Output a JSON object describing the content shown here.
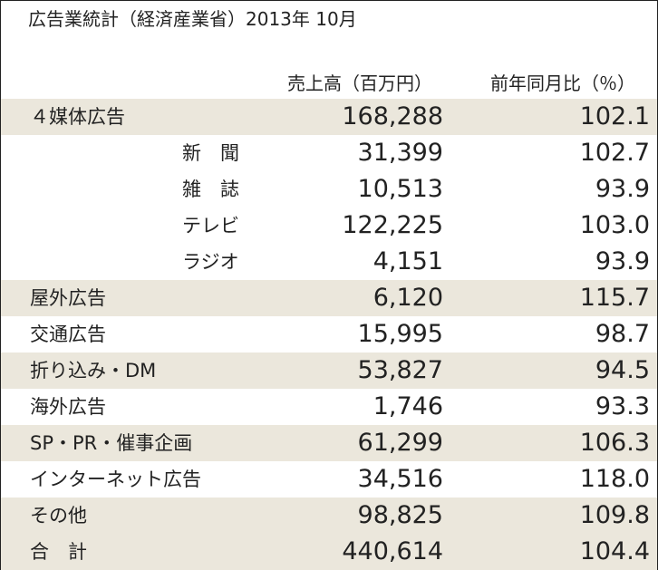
{
  "title": "広告業統計（経済産業省）2013年 10月",
  "headers": {
    "sales": "売上高（百万円）",
    "ratio": "前年同月比（％）"
  },
  "rows": [
    {
      "label": "４媒体広告",
      "sales": "168,288",
      "ratio": "102.1",
      "shaded": true,
      "sub": false
    },
    {
      "label": "新　聞",
      "sales": "31,399",
      "ratio": "102.7",
      "shaded": false,
      "sub": true
    },
    {
      "label": "雑　誌",
      "sales": "10,513",
      "ratio": "93.9",
      "shaded": false,
      "sub": true
    },
    {
      "label": "テレビ",
      "sales": "122,225",
      "ratio": "103.0",
      "shaded": false,
      "sub": true
    },
    {
      "label": "ラジオ",
      "sales": "4,151",
      "ratio": "93.9",
      "shaded": false,
      "sub": true
    },
    {
      "label": "屋外広告",
      "sales": "6,120",
      "ratio": "115.7",
      "shaded": true,
      "sub": false
    },
    {
      "label": "交通広告",
      "sales": "15,995",
      "ratio": "98.7",
      "shaded": false,
      "sub": false
    },
    {
      "label": "折り込み・DM",
      "sales": "53,827",
      "ratio": "94.5",
      "shaded": true,
      "sub": false
    },
    {
      "label": "海外広告",
      "sales": "1,746",
      "ratio": "93.3",
      "shaded": false,
      "sub": false
    },
    {
      "label": "SP・PR・催事企画",
      "sales": "61,299",
      "ratio": "106.3",
      "shaded": true,
      "sub": false
    },
    {
      "label": "インターネット広告",
      "sales": "34,516",
      "ratio": "118.0",
      "shaded": false,
      "sub": false
    },
    {
      "label": "その他",
      "sales": "98,825",
      "ratio": "109.8",
      "shaded": true,
      "sub": false
    },
    {
      "label": "合　計",
      "sales": "440,614",
      "ratio": "104.4",
      "shaded": true,
      "sub": false
    }
  ],
  "colors": {
    "shade": "#ebe7dc",
    "text": "#222222",
    "border": "#222222"
  }
}
